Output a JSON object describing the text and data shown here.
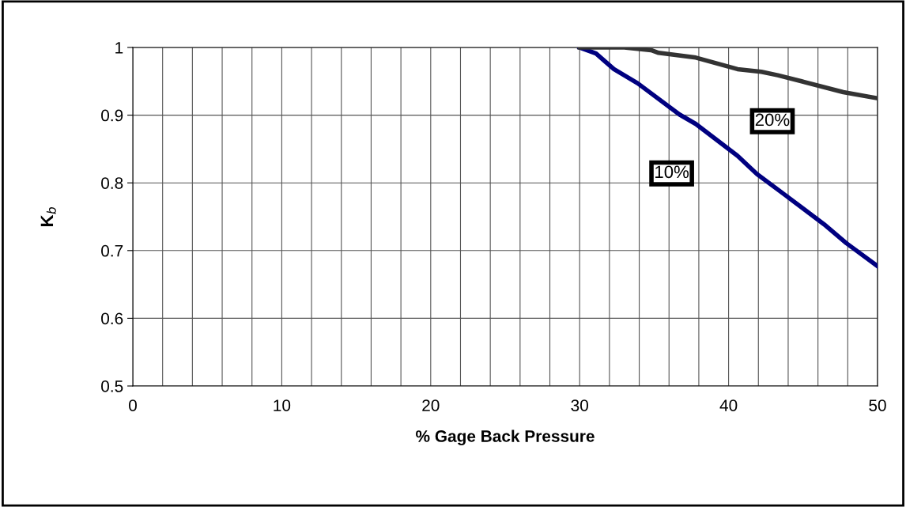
{
  "chart_data": {
    "type": "line",
    "xlabel": "% Gage Back Pressure",
    "ylabel": "K$_{b}$",
    "xlim": [
      0,
      50
    ],
    "ylim": [
      0.5,
      1
    ],
    "xticks": [
      0,
      {
        "value": 2,
        "label": null
      },
      {
        "value": 4,
        "label": null
      },
      {
        "value": 6,
        "label": null
      },
      {
        "value": 8,
        "label": null
      },
      10,
      {
        "value": 12,
        "label": null
      },
      {
        "value": 14,
        "label": null
      },
      {
        "value": 16,
        "label": null
      },
      {
        "value": 18,
        "label": null
      },
      20,
      {
        "value": 22,
        "label": null
      },
      {
        "value": 24,
        "label": null
      },
      {
        "value": 26,
        "label": null
      },
      {
        "value": 28,
        "label": null
      },
      30,
      {
        "value": 32,
        "label": null
      },
      {
        "value": 34,
        "label": null
      },
      {
        "value": 36,
        "label": null
      },
      {
        "value": 38,
        "label": null
      },
      40,
      {
        "value": 42,
        "label": null
      },
      {
        "value": 44,
        "label": null
      },
      {
        "value": 46,
        "label": null
      },
      {
        "value": 48,
        "label": null
      },
      50
    ],
    "yticks": [
      0.5,
      0.6,
      0.7,
      0.8,
      0.9,
      1
    ],
    "grid": true,
    "legend": false,
    "marker": "none",
    "line_style": "solid",
    "series": [
      {
        "name": "10%",
        "color": "#000080",
        "x": [
          30,
          31.1,
          32.3,
          33.9,
          36.7,
          37.8,
          40.6,
          41.9,
          43.8,
          46.4,
          47.9,
          50
        ],
        "values": [
          1,
          0.991,
          0.968,
          0.947,
          0.901,
          0.887,
          0.84,
          0.813,
          0.782,
          0.739,
          0.711,
          0.677
        ]
      },
      {
        "name": "20%",
        "color": "#333333",
        "x": [
          30,
          33,
          34.8,
          35.3,
          37.8,
          40.6,
          42.2,
          43.3,
          44.9,
          47.7,
          50
        ],
        "values": [
          1,
          1,
          0.996,
          0.992,
          0.985,
          0.968,
          0.964,
          0.959,
          0.95,
          0.934,
          0.925
        ]
      }
    ]
  }
}
